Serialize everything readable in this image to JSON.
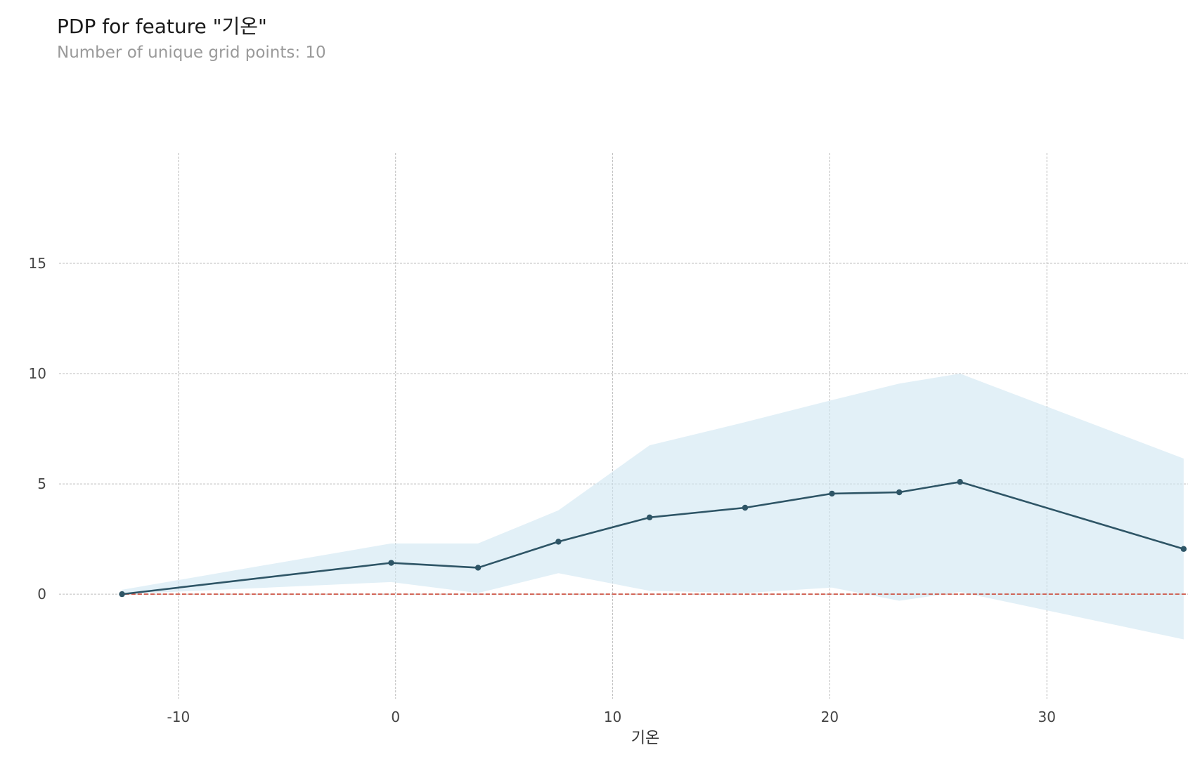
{
  "chart_data": {
    "type": "line",
    "title": "PDP for feature \"기온\"",
    "subtitle": "Number of unique grid points: 10",
    "xlabel": "기온",
    "ylabel": "",
    "xlim": [
      -15.5,
      36.5
    ],
    "ylim": [
      -4.9,
      20.0
    ],
    "x_ticks": [
      -10,
      0,
      10,
      20,
      30
    ],
    "y_ticks": [
      0,
      5,
      10,
      15
    ],
    "grid": true,
    "legend": "none",
    "series": [
      {
        "x": [
          -12.6,
          -0.2,
          3.8,
          7.5,
          11.7,
          16.1,
          20.1,
          23.2,
          26.0,
          36.3
        ],
        "values": [
          0.0,
          1.42,
          1.2,
          2.38,
          3.48,
          3.92,
          4.56,
          4.62,
          5.09,
          2.05
        ]
      }
    ],
    "confidence_band": {
      "x": [
        -12.6,
        -0.2,
        3.8,
        7.5,
        11.7,
        16.1,
        20.1,
        23.2,
        26.0,
        36.3
      ],
      "upper": [
        0.2,
        2.3,
        2.3,
        3.8,
        6.75,
        7.8,
        8.8,
        9.55,
        10.0,
        6.15
      ],
      "lower": [
        0.0,
        0.55,
        0.05,
        0.95,
        0.15,
        0.05,
        0.3,
        -0.3,
        0.1,
        -2.05
      ]
    },
    "baseline": 0,
    "colors": {
      "line": "#2e5566",
      "band": "#cfe6f2",
      "baseline": "#cc4a3a",
      "grid": "#bdbdbd"
    }
  }
}
